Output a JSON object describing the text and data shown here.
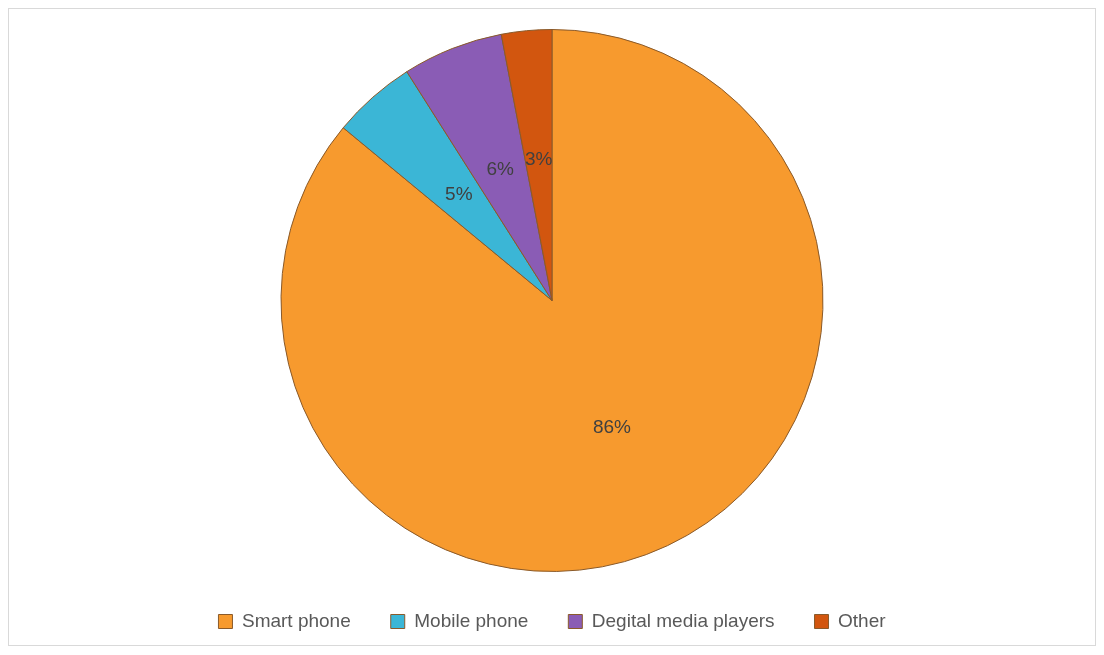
{
  "chart_data": {
    "type": "pie",
    "categories": [
      "Smart phone",
      "Mobile phone",
      "Degital media players",
      "Other"
    ],
    "values": [
      86,
      5,
      6,
      3
    ],
    "colors": [
      "#f79a2e",
      "#3bb6d6",
      "#8a5cb5",
      "#d2560f"
    ],
    "value_labels": [
      "86%",
      "5%",
      "6%",
      "3%"
    ],
    "legend": "bottom"
  }
}
